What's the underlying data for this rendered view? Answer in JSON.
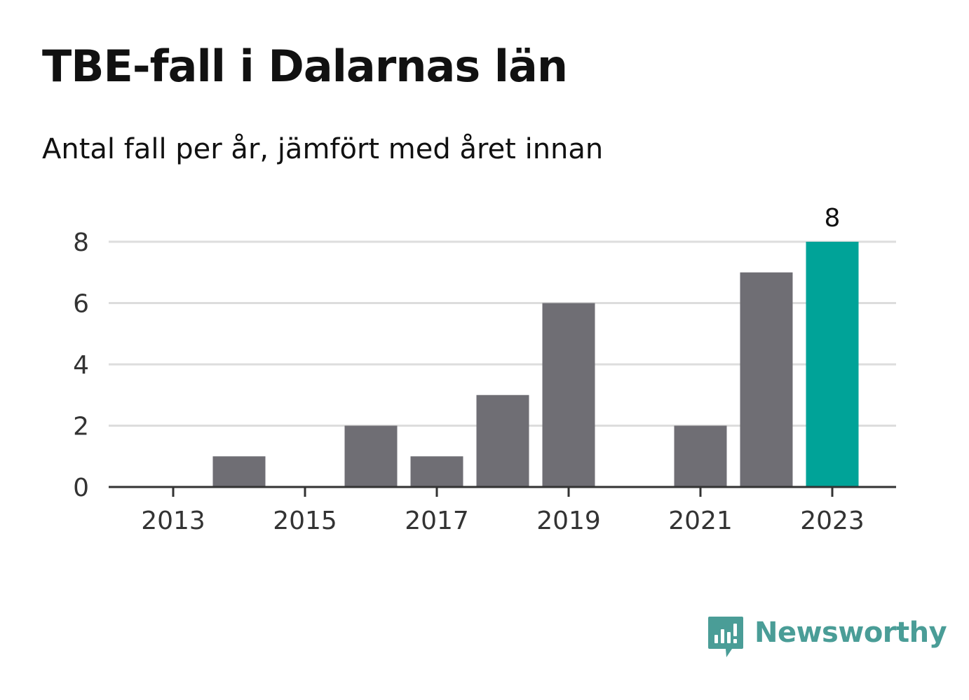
{
  "header": {
    "title": "TBE-fall i Dalarnas län",
    "subtitle": "Antal fall per år, jämfört med året innan"
  },
  "chart_data": {
    "type": "bar",
    "title": "TBE-fall i Dalarnas län",
    "subtitle": "Antal fall per år, jämfört med året innan",
    "categories": [
      2013,
      2014,
      2015,
      2016,
      2017,
      2018,
      2019,
      2020,
      2021,
      2022,
      2023
    ],
    "values": [
      0,
      1,
      0,
      2,
      1,
      3,
      6,
      0,
      2,
      7,
      8
    ],
    "x_tick_labels": [
      "2013",
      "2015",
      "2017",
      "2019",
      "2021",
      "2023"
    ],
    "y_tick_labels": [
      "0",
      "2",
      "4",
      "6",
      "8"
    ],
    "ylim": [
      0,
      8
    ],
    "grid": true,
    "highlight_category": 2023,
    "highlight_label": "8",
    "colors": {
      "bar": "#6f6e74",
      "highlight": "#00a398",
      "grid": "#dddddd",
      "axis": "#333333",
      "tick_text": "#333333"
    }
  },
  "brand": {
    "name": "Newsworthy",
    "icon": "bar-chart-speech-bubble-icon",
    "color": "#4a9d97"
  }
}
